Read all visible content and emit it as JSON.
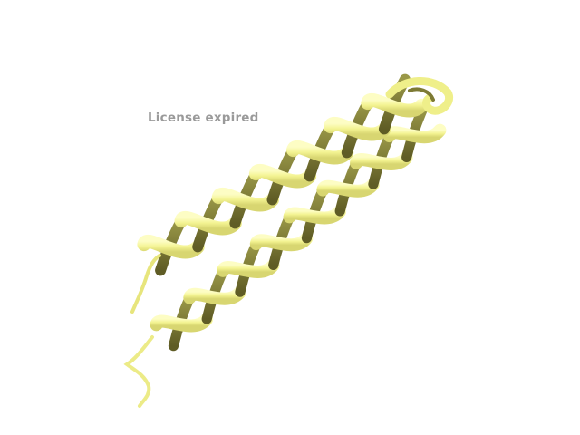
{
  "watermark": {
    "text": "License expired"
  },
  "structure": {
    "representation": "cartoon",
    "helices": 2,
    "colors": {
      "ribbon_light": "#fafaa0",
      "ribbon_mid": "#eded82",
      "ribbon_shadow": "#b9b85a",
      "ribbon_dark": "#7d7a34"
    }
  }
}
